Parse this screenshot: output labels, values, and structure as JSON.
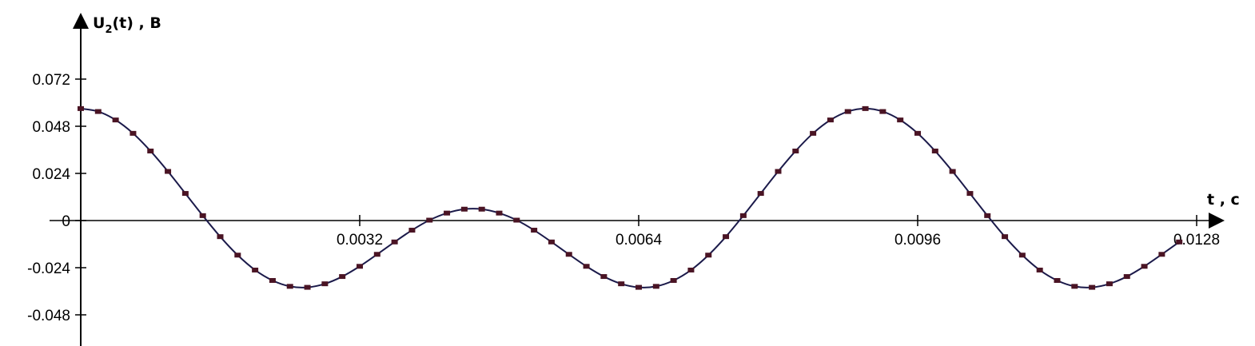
{
  "chart_data": {
    "type": "line",
    "title": "",
    "ylabel": "U",
    "ylabel_subscript": "2",
    "ylabel_rest": "(t) , B",
    "xlabel": "t , c",
    "xlim": [
      0,
      0.0131
    ],
    "ylim": [
      -0.06,
      0.088
    ],
    "x_ticks": [
      0.0032,
      0.0064,
      0.0096,
      0.0128
    ],
    "x_tick_labels": [
      "0.0032",
      "0.0064",
      "0.0096",
      "0.0128"
    ],
    "y_ticks": [
      0.072,
      0.048,
      0.024,
      0,
      -0.024,
      -0.048
    ],
    "y_tick_labels": [
      "0.072",
      "0.048",
      "0.024",
      "0",
      "-0.024",
      "-0.048"
    ],
    "grid": false,
    "legend": "none",
    "line_color": "#1b1a4a",
    "marker_color": "#4a1424",
    "marker": "square",
    "series": [
      {
        "x": [
          0,
          0.0002,
          0.0004,
          0.0006,
          0.0008,
          0.001,
          0.0012,
          0.0014,
          0.0016,
          0.0018,
          0.002,
          0.0022,
          0.0024,
          0.0026,
          0.0028,
          0.003,
          0.0032,
          0.0034,
          0.0036,
          0.0038,
          0.004,
          0.0042,
          0.0044,
          0.0046,
          0.0048,
          0.005,
          0.0052,
          0.0054,
          0.0056,
          0.0058,
          0.006,
          0.0062,
          0.0064,
          0.0066,
          0.0068,
          0.007,
          0.0072,
          0.0074,
          0.0076,
          0.0078,
          0.008,
          0.0082,
          0.0084,
          0.0086,
          0.0088,
          0.009,
          0.0092,
          0.0094,
          0.0096,
          0.0098,
          0.01,
          0.0102,
          0.0104,
          0.0106,
          0.0108,
          0.011,
          0.0112,
          0.0114,
          0.0116,
          0.0118,
          0.012,
          0.0122,
          0.0124,
          0.0126
        ],
        "y": [
          0.057,
          0.0555,
          0.0512,
          0.0444,
          0.0354,
          0.025,
          0.0138,
          0.0025,
          -0.0082,
          -0.0176,
          -0.0252,
          -0.0305,
          -0.0335,
          -0.034,
          -0.0322,
          -0.0285,
          -0.0233,
          -0.0172,
          -0.0109,
          -0.0049,
          0.0002,
          0.0038,
          0.0058,
          0.0058,
          0.0038,
          0.0002,
          -0.0049,
          -0.0109,
          -0.0172,
          -0.0233,
          -0.0285,
          -0.0322,
          -0.034,
          -0.0335,
          -0.0305,
          -0.0252,
          -0.0176,
          -0.0082,
          0.0025,
          0.0138,
          0.025,
          0.0354,
          0.0444,
          0.0512,
          0.0555,
          0.057,
          0.0555,
          0.0512,
          0.0444,
          0.0354,
          0.025,
          0.0138,
          0.0025,
          -0.0082,
          -0.0176,
          -0.0252,
          -0.0305,
          -0.0335,
          -0.034,
          -0.0322,
          -0.0285,
          -0.0233,
          -0.0172,
          -0.0109
        ]
      }
    ]
  }
}
